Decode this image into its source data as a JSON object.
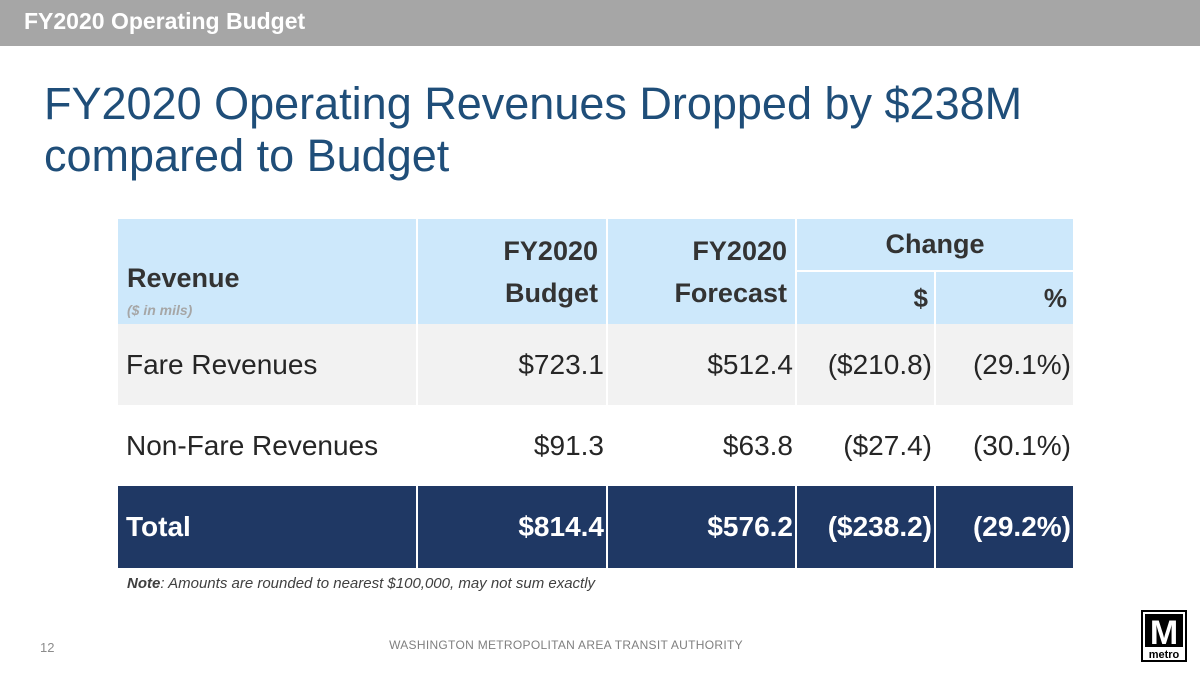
{
  "header_bar": {
    "title": "FY2020 Operating Budget"
  },
  "slide": {
    "title": "FY2020 Operating Revenues Dropped by $238M compared to Budget"
  },
  "table": {
    "headers": {
      "revenue": "Revenue",
      "revenue_sub": "($ in mils)",
      "budget": "FY2020 Budget",
      "forecast": "FY2020 Forecast",
      "change": "Change",
      "change_dollar": "$",
      "change_pct": "%"
    },
    "rows": [
      {
        "label": "Fare Revenues",
        "budget": "$723.1",
        "forecast": "$512.4",
        "change_dollar": "($210.8)",
        "change_pct": "(29.1%)"
      },
      {
        "label": "Non-Fare Revenues",
        "budget": "$91.3",
        "forecast": "$63.8",
        "change_dollar": "($27.4)",
        "change_pct": "(30.1%)"
      }
    ],
    "total": {
      "label": "Total",
      "budget": "$814.4",
      "forecast": "$576.2",
      "change_dollar": "($238.2)",
      "change_pct": "(29.2%)"
    }
  },
  "note": {
    "label": "Note",
    "text": ": Amounts are rounded to nearest $100,000, may not sum exactly"
  },
  "footer": {
    "page_number": "12",
    "organization": "WASHINGTON METROPOLITAN AREA TRANSIT AUTHORITY"
  },
  "logo": {
    "letter": "M",
    "wordmark": "metro"
  },
  "colors": {
    "title": "#1f4e79",
    "header_fill": "#cde8fb",
    "total_fill": "#1f3864",
    "top_bar": "#a6a6a6"
  }
}
